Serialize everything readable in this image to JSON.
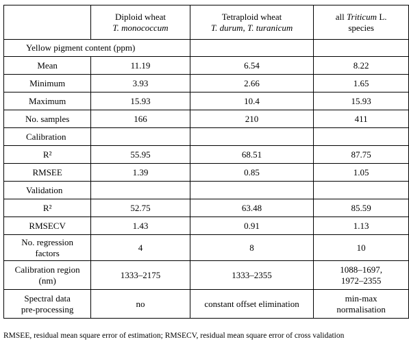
{
  "header": {
    "col1": {
      "line1": "Diploid wheat",
      "line2": "T. monococcum"
    },
    "col2": {
      "line1": "Tetraploid wheat",
      "line2": "T. durum, T. turanicum"
    },
    "col3": {
      "prefix": "all",
      "italic": "Triticum",
      "suffix": "L.",
      "line2": "species"
    }
  },
  "sections": {
    "yellow": "Yellow pigment content (ppm)",
    "calibration": "Calibration",
    "validation": "Validation"
  },
  "rows": {
    "mean": {
      "label": "Mean",
      "values": [
        "11.19",
        "6.54",
        "8.22"
      ]
    },
    "minimum": {
      "label": "Minimum",
      "values": [
        "3.93",
        "2.66",
        "1.65"
      ]
    },
    "maximum": {
      "label": "Maximum",
      "values": [
        "15.93",
        "10.4",
        "15.93"
      ]
    },
    "samples": {
      "label": "No. samples",
      "values": [
        "166",
        "210",
        "411"
      ]
    },
    "cal_r2": {
      "label": "R²",
      "values": [
        "55.95",
        "68.51",
        "87.75"
      ]
    },
    "rmsee": {
      "label": "RMSEE",
      "values": [
        "1.39",
        "0.85",
        "1.05"
      ]
    },
    "val_r2": {
      "label": "R²",
      "values": [
        "52.75",
        "63.48",
        "85.59"
      ]
    },
    "rmsecv": {
      "label": "RMSECV",
      "values": [
        "1.43",
        "0.91",
        "1.13"
      ]
    },
    "factors": {
      "label_1": "No. regression",
      "label_2": "factors",
      "values": [
        "4",
        "8",
        "10"
      ]
    },
    "region": {
      "label_1": "Calibration region",
      "label_2": "(nm)",
      "values": [
        "1333–2175",
        "1333–2355"
      ],
      "value3_1": "1088–1697,",
      "value3_2": "1972–2355"
    },
    "spectral": {
      "label_1": "Spectral data",
      "label_2": "pre-processing",
      "values": [
        "no",
        "constant offset elimination"
      ],
      "value3_1": "min-max",
      "value3_2": "normalisation"
    }
  },
  "footnote": "RMSEE, residual mean square error of estimation; RMSECV, residual mean square error of cross validation"
}
